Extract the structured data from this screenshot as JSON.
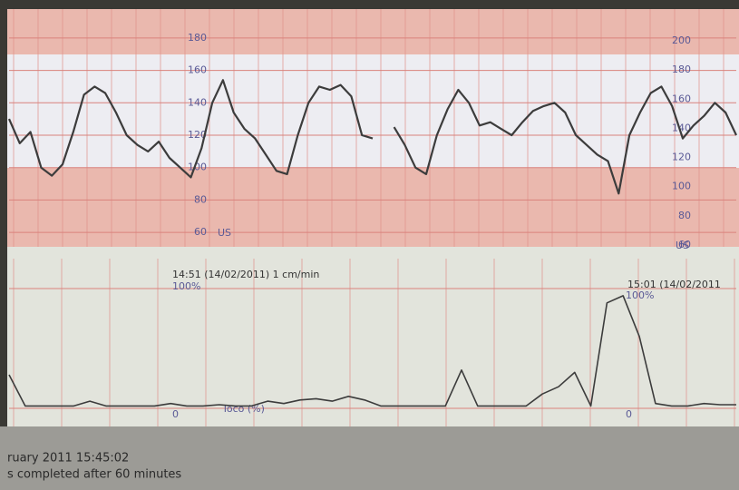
{
  "chart_data": [
    {
      "type": "line",
      "unit_label": "US",
      "values": [
        130,
        115,
        122,
        100,
        95,
        102,
        122,
        145,
        150,
        146,
        134,
        120,
        114,
        110,
        116,
        106,
        100,
        94,
        112,
        140,
        154,
        134,
        124,
        118,
        108,
        98,
        96,
        120,
        140,
        150,
        148,
        151,
        144,
        120,
        118,
        null,
        125,
        114,
        100,
        96,
        120,
        136,
        148,
        140,
        126,
        128,
        124,
        120,
        128,
        135,
        138,
        140,
        134,
        120,
        114,
        108,
        104,
        84,
        120,
        134,
        146,
        150,
        138,
        118,
        126,
        132,
        140,
        134,
        120
      ],
      "color": "#3c3c3c",
      "ylim": [
        50,
        190
      ],
      "yticks": [
        60,
        80,
        100,
        120,
        140,
        160,
        180
      ],
      "y2lim": [
        50,
        210
      ],
      "y2ticks": [
        60,
        80,
        100,
        120,
        140,
        160,
        180,
        200
      ]
    },
    {
      "type": "line",
      "header_left": "14:51 (14/02/2011) 1 cm/min",
      "header_right": "15:01 (14/02/2011",
      "y_label": "Toco (%)",
      "values": [
        28,
        2,
        2,
        2,
        2,
        6,
        2,
        2,
        2,
        2,
        4,
        2,
        2,
        3,
        2,
        2,
        6,
        4,
        7,
        8,
        6,
        10,
        7,
        2,
        2,
        2,
        2,
        2,
        32,
        2,
        2,
        2,
        2,
        12,
        18,
        30,
        2,
        88,
        94,
        60,
        4,
        2,
        2,
        4,
        3,
        3
      ],
      "color": "#3c3c3c",
      "ylim": [
        0,
        100
      ],
      "yticks": [
        0,
        {
          "value": 100,
          "label": "100%"
        }
      ]
    }
  ],
  "status": {
    "line1": "ruary 2011 15:45:02",
    "line2": "s completed after 60 minutes"
  }
}
